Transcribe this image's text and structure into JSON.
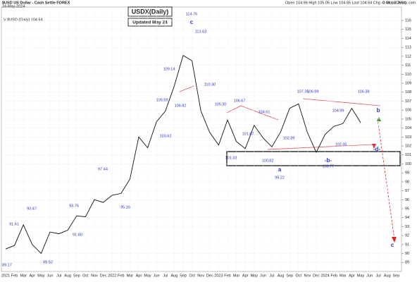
{
  "chart_data": {
    "type": "line",
    "symbol": "$USD US Dollar - Cash Settle FOREX",
    "date": "24-May-2024",
    "quote": "Open 104.96 High 105.05 Low 104.65 Last 104.64 Chg -0.46 (-0.36%)",
    "credit": "© StockCharts.com",
    "title": "USDX(Daily)",
    "subtitle": "Updated May 24",
    "legend_text": "V $USD (Daily) 104.64",
    "categories": [
      "2021",
      "Feb",
      "Mar",
      "Apr",
      "May",
      "Jun",
      "Jul",
      "Aug",
      "Sep",
      "Oct",
      "Nov",
      "Dec",
      "2022",
      "Feb",
      "Mar",
      "Apr",
      "May",
      "Jun",
      "Jul",
      "Aug",
      "Sep",
      "Oct",
      "Nov",
      "Dec",
      "2023",
      "Feb",
      "Mar",
      "Apr",
      "May",
      "Jun",
      "Jul",
      "Aug",
      "Sep",
      "Oct",
      "Nov",
      "Dec",
      "2024",
      "Feb",
      "Mar",
      "Apr",
      "May",
      "Jun",
      "Jul",
      "Aug",
      "Sep"
    ],
    "series": [
      {
        "name": "$USD",
        "color": "#111111",
        "values": [
          90.5,
          90.9,
          93.2,
          91.0,
          90.0,
          92.4,
          92.2,
          92.6,
          94.2,
          94.1,
          96.0,
          95.7,
          96.5,
          96.7,
          98.3,
          103.0,
          101.8,
          104.7,
          105.9,
          108.7,
          112.1,
          111.5,
          105.9,
          103.5,
          102.1,
          104.9,
          102.5,
          101.7,
          104.3,
          102.9,
          101.9,
          103.6,
          106.2,
          106.7,
          103.5,
          101.3,
          103.3,
          104.2,
          104.5,
          106.2,
          104.6,
          null,
          null,
          null,
          null
        ]
      }
    ],
    "ylim": [
      88,
      117.5
    ],
    "yticks": [
      89,
      90,
      91,
      92,
      93,
      94,
      95,
      96,
      97,
      98,
      99,
      100,
      101,
      102,
      103,
      104,
      105,
      106,
      107,
      108,
      109,
      110,
      111,
      112,
      113,
      114,
      115,
      116
    ],
    "annotations": [
      "114.76",
      "89.17",
      "91.61",
      "93.47",
      "89.52",
      "93.76",
      "91.80",
      "97.44",
      "95.16",
      "105.59",
      "103.62",
      "109.14",
      "106.82",
      "113.63",
      "110.30",
      "105.30",
      "106.67",
      "101.87",
      "104.61",
      "100.82",
      "101.33",
      "99.22",
      "107.35",
      "106.99",
      "102.39",
      "100.77",
      "104.99",
      "106.38",
      "102.35",
      "c",
      "a",
      "b",
      "c",
      "-d-",
      "-b-"
    ]
  }
}
